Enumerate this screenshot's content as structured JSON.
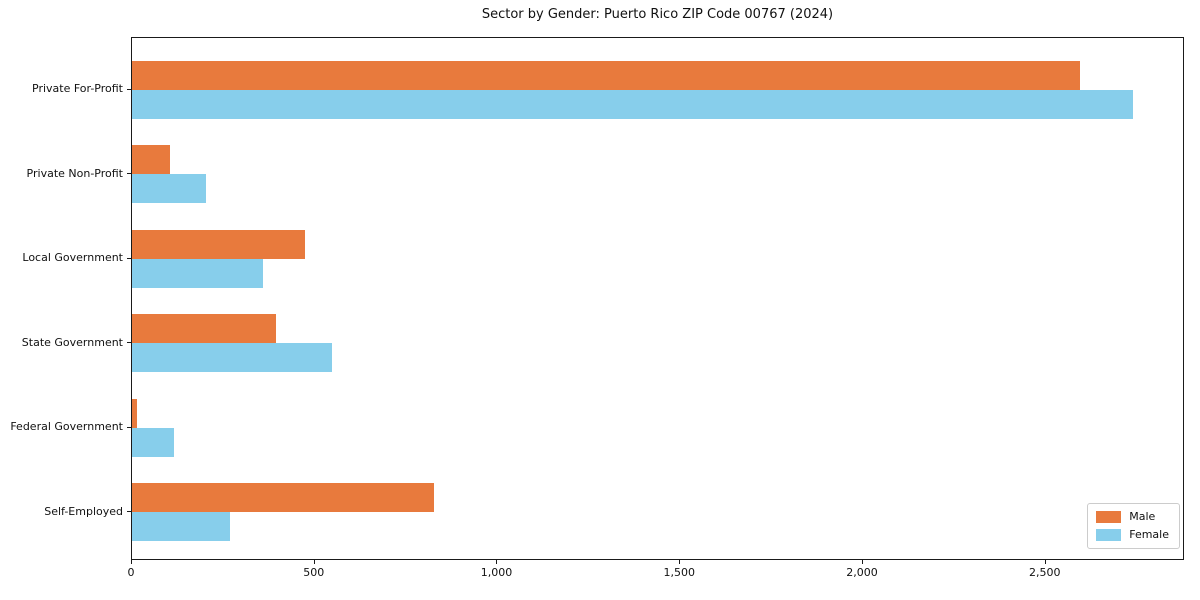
{
  "title": "Sector by Gender: Puerto Rico ZIP Code 00767 (2024)",
  "colors": {
    "male": "#E87A3D",
    "female": "#87CEEB",
    "spine": "#1a1a1a",
    "legend_border": "#cccccc",
    "background": "#ffffff"
  },
  "legend": {
    "position": "lower right",
    "items": [
      {
        "label": "Male",
        "color_key": "male"
      },
      {
        "label": "Female",
        "color_key": "female"
      }
    ]
  },
  "chart_data": {
    "type": "bar",
    "orientation": "horizontal",
    "title": "Sector by Gender: Puerto Rico ZIP Code 00767 (2024)",
    "xlabel": "",
    "ylabel": "",
    "categories": [
      "Private For-Profit",
      "Private Non-Profit",
      "Local Government",
      "State Government",
      "Federal Government",
      "Self-Employed"
    ],
    "series": [
      {
        "name": "Male",
        "color_key": "male",
        "values": [
          2600,
          103,
          475,
          394,
          13,
          828
        ]
      },
      {
        "name": "Female",
        "color_key": "female",
        "values": [
          2744,
          204,
          359,
          547,
          114,
          270
        ]
      }
    ],
    "xlim": [
      0,
      2881
    ],
    "x_ticks": [
      0,
      500,
      1000,
      1500,
      2000,
      2500
    ],
    "x_tick_labels": [
      "0",
      "500",
      "1,000",
      "1,500",
      "2,000",
      "2,500"
    ],
    "grid": false,
    "legend_position": "lower right"
  }
}
